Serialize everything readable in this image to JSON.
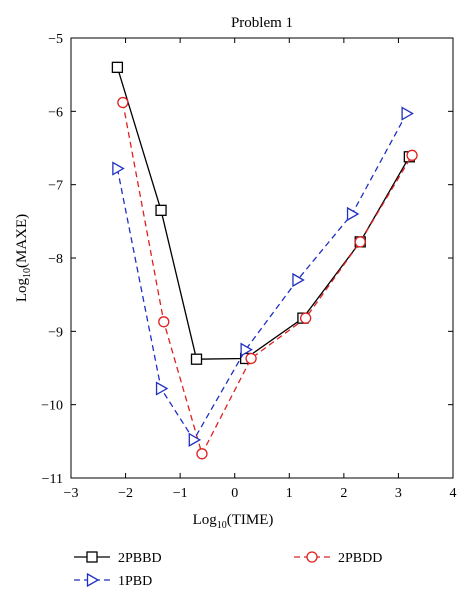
{
  "chart_data": {
    "type": "line",
    "title": "Problem 1",
    "xlabel_prefix": "Log",
    "xlabel_sub": "10",
    "xlabel_suffix": "(TIME)",
    "ylabel_prefix": "Log",
    "ylabel_sub": "10",
    "ylabel_suffix": "(MAXE)",
    "xlim": [
      -3,
      4
    ],
    "ylim": [
      -11,
      -5
    ],
    "xticks": [
      -3,
      -2,
      -1,
      0,
      1,
      2,
      3,
      4
    ],
    "yticks": [
      -5,
      -6,
      -7,
      -8,
      -9,
      -10,
      -11
    ],
    "grid": false,
    "legend_position": "bottom",
    "series": [
      {
        "name": "2PBBD",
        "color": "#000000",
        "line": "solid",
        "marker": "square",
        "points": [
          [
            -2.15,
            -5.4
          ],
          [
            -1.35,
            -7.35
          ],
          [
            -0.7,
            -9.38
          ],
          [
            0.2,
            -9.37
          ],
          [
            1.25,
            -8.82
          ],
          [
            2.3,
            -7.78
          ],
          [
            3.2,
            -6.62
          ]
        ]
      },
      {
        "name": "2PBDD",
        "color": "#e02020",
        "line": "dashed",
        "marker": "circle",
        "points": [
          [
            -2.05,
            -5.88
          ],
          [
            -1.3,
            -8.87
          ],
          [
            -0.6,
            -10.67
          ],
          [
            0.3,
            -9.37
          ],
          [
            1.3,
            -8.82
          ],
          [
            2.3,
            -7.78
          ],
          [
            3.25,
            -6.6
          ]
        ]
      },
      {
        "name": "1PBD",
        "color": "#2030c0",
        "line": "dashed",
        "marker": "triangle-right",
        "points": [
          [
            -2.15,
            -6.78
          ],
          [
            -1.35,
            -9.78
          ],
          [
            -0.75,
            -10.48
          ],
          [
            0.2,
            -9.25
          ],
          [
            1.15,
            -8.3
          ],
          [
            2.15,
            -7.4
          ],
          [
            3.15,
            -6.03
          ]
        ]
      }
    ]
  }
}
